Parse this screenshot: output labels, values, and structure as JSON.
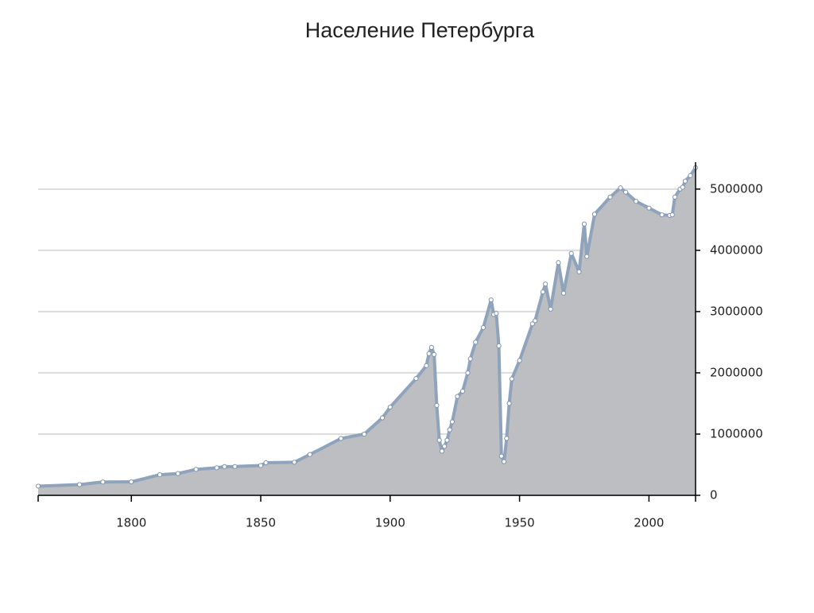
{
  "chart_data": {
    "type": "area",
    "title": "Население Петербурга",
    "x": [
      1764,
      1780,
      1789,
      1800,
      1811,
      1818,
      1825,
      1833,
      1836,
      1840,
      1850,
      1852,
      1863,
      1869,
      1881,
      1890,
      1897,
      1900,
      1910,
      1914,
      1915,
      1916,
      1917,
      1918,
      1919,
      1920,
      1921,
      1922,
      1923,
      1924,
      1926,
      1928,
      1930,
      1931,
      1933,
      1936,
      1939,
      1940,
      1941,
      1942,
      1943,
      1944,
      1945,
      1946,
      1947,
      1950,
      1955,
      1956,
      1959,
      1960,
      1962,
      1965,
      1967,
      1970,
      1973,
      1975,
      1976,
      1979,
      1985,
      1989,
      1991,
      1995,
      2000,
      2005,
      2008,
      2009,
      2010,
      2012,
      2013,
      2014,
      2016,
      2018
    ],
    "values": [
      150000,
      175000,
      218000,
      220000,
      336000,
      355000,
      424000,
      449000,
      469000,
      470000,
      487000,
      532000,
      540000,
      667000,
      928000,
      1000000,
      1265000,
      1440000,
      1906000,
      2118000,
      2314000,
      2415000,
      2300000,
      1469000,
      900000,
      722000,
      800000,
      900000,
      1071000,
      1200000,
      1614000,
      1700000,
      2000000,
      2228000,
      2500000,
      2739000,
      3191000,
      2953000,
      2970000,
      2440000,
      640000,
      550000,
      930000,
      1500000,
      1900000,
      2200000,
      2800000,
      2850000,
      3321000,
      3450000,
      3040000,
      3800000,
      3300000,
      3950000,
      3650000,
      4430000,
      3900000,
      4590000,
      4870000,
      5020000,
      4950000,
      4800000,
      4690000,
      4580000,
      4570000,
      4580000,
      4870000,
      5000000,
      5030000,
      5130000,
      5220000,
      5350000
    ],
    "xlim": [
      1764,
      2018
    ],
    "ylim": [
      0,
      5400000
    ],
    "xticks": [
      1800,
      1850,
      1900,
      1950,
      2000
    ],
    "yticks": [
      0,
      1000000,
      2000000,
      3000000,
      4000000,
      5000000
    ],
    "grid": true,
    "color": "#bcbec1",
    "line_color": "#8fa3bd"
  }
}
